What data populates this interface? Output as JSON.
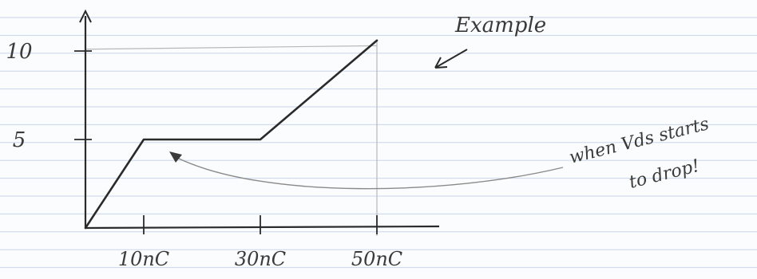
{
  "chart_data": {
    "type": "line",
    "x": [
      0,
      10,
      30,
      50
    ],
    "y": [
      0,
      5,
      5,
      10.6
    ],
    "xticks": [
      "10nC",
      "30nC",
      "50nC"
    ],
    "yticks": [
      "5",
      "10"
    ],
    "xlabel": "",
    "ylabel": "",
    "xlim": [
      0,
      60
    ],
    "ylim": [
      0,
      11.5
    ],
    "grid": false,
    "annotations": {
      "example": "Example",
      "note_line1": "when Vds starts",
      "note_line2": "to drop!"
    },
    "colors": {
      "ink": "#2a2a2a",
      "paper_rule": "#c9d6ea",
      "faint": "#b8b8b8"
    }
  }
}
